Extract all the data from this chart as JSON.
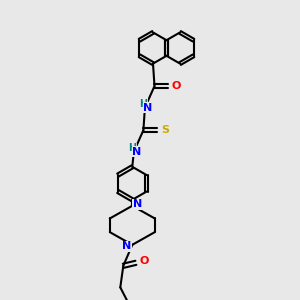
{
  "bg_color": "#e8e8e8",
  "bond_color": "#000000",
  "atom_colors": {
    "N": "#0000ff",
    "O": "#ff0000",
    "S": "#ccaa00",
    "H": "#008080",
    "C": "#000000"
  }
}
